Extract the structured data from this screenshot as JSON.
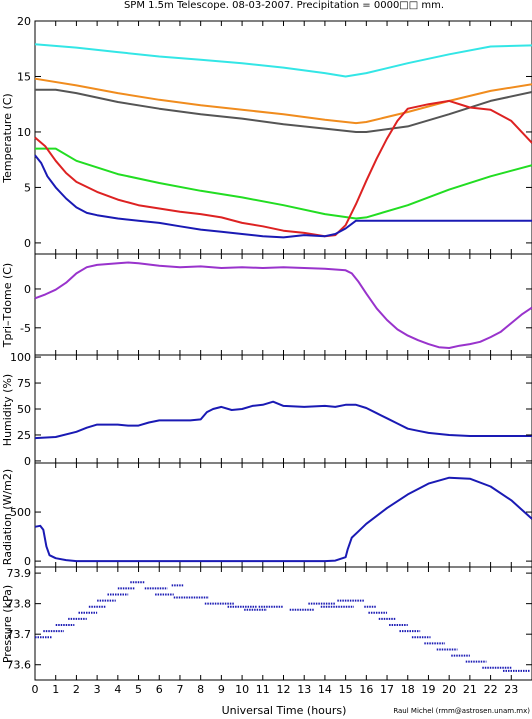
{
  "figure": {
    "title": "SPM 1.5m Telescope. 08-03-2007. Precipitation = 0000□□ mm.",
    "xlabel": "Universal Time (hours)",
    "credit": "Raul Michel (rmm@astrosen.unam.mx)",
    "xticks": [
      "0",
      "1",
      "2",
      "3",
      "4",
      "5",
      "6",
      "7",
      "8",
      "9",
      "10",
      "11",
      "12",
      "13",
      "14",
      "15",
      "16",
      "17",
      "18",
      "19",
      "20",
      "21",
      "22",
      "23"
    ],
    "xlim": [
      0,
      24
    ]
  },
  "chart_data": [
    {
      "type": "line",
      "ylabel": "Temperature (C)",
      "ylim": [
        -1,
        20
      ],
      "yticks": [
        0,
        5,
        10,
        15,
        20
      ],
      "series": [
        {
          "color": "#33e6e6",
          "x": [
            0,
            2,
            4,
            6,
            8,
            10,
            12,
            14,
            15,
            16,
            18,
            20,
            22,
            24
          ],
          "values": [
            17.9,
            17.6,
            17.2,
            16.8,
            16.5,
            16.2,
            15.8,
            15.3,
            15.0,
            15.3,
            16.2,
            17.0,
            17.7,
            17.8
          ]
        },
        {
          "color": "#f08c1e",
          "x": [
            0,
            2,
            4,
            6,
            8,
            10,
            12,
            14,
            15.5,
            16,
            18,
            20,
            22,
            24
          ],
          "values": [
            14.8,
            14.2,
            13.5,
            12.9,
            12.4,
            12.0,
            11.6,
            11.1,
            10.8,
            10.9,
            11.8,
            12.8,
            13.7,
            14.3
          ]
        },
        {
          "color": "#555555",
          "x": [
            0,
            1,
            2,
            4,
            6,
            8,
            10,
            12,
            14,
            15.5,
            16,
            18,
            20,
            22,
            24
          ],
          "values": [
            13.8,
            13.8,
            13.5,
            12.7,
            12.1,
            11.6,
            11.2,
            10.7,
            10.3,
            10.0,
            10.0,
            10.5,
            11.6,
            12.8,
            13.6
          ]
        },
        {
          "color": "#22dd22",
          "x": [
            0,
            1,
            2,
            4,
            6,
            8,
            10,
            12,
            14,
            15.5,
            16,
            18,
            20,
            22,
            24
          ],
          "values": [
            8.5,
            8.5,
            7.4,
            6.2,
            5.4,
            4.7,
            4.1,
            3.4,
            2.6,
            2.2,
            2.3,
            3.4,
            4.8,
            6.0,
            7.0
          ]
        },
        {
          "color": "#dd2222",
          "x": [
            0,
            0.5,
            1,
            1.5,
            2,
            3,
            4,
            5,
            6,
            7,
            8,
            9,
            10,
            11,
            12,
            13,
            14,
            14.5,
            15,
            15.5,
            16,
            16.5,
            17,
            17.5,
            18,
            19,
            20,
            21,
            22,
            23,
            24
          ],
          "values": [
            9.5,
            8.7,
            7.4,
            6.3,
            5.5,
            4.6,
            3.9,
            3.4,
            3.1,
            2.8,
            2.6,
            2.3,
            1.8,
            1.5,
            1.1,
            0.9,
            0.6,
            0.7,
            1.6,
            3.5,
            5.6,
            7.6,
            9.4,
            11.0,
            12.1,
            12.5,
            12.8,
            12.2,
            12.0,
            11.0,
            9.0
          ]
        },
        {
          "color": "#1a1ab4",
          "x": [
            0,
            0.3,
            0.6,
            1,
            1.5,
            2,
            2.5,
            3,
            4,
            5,
            6,
            7,
            8,
            9,
            10,
            11,
            12,
            13,
            14,
            14.5,
            15,
            15.5,
            24
          ],
          "values": [
            7.9,
            7.2,
            6.0,
            5.0,
            4.0,
            3.2,
            2.7,
            2.5,
            2.2,
            2.0,
            1.8,
            1.5,
            1.2,
            1.0,
            0.8,
            0.6,
            0.5,
            0.7,
            0.6,
            0.8,
            1.3,
            2.0,
            2.0
          ]
        }
      ]
    },
    {
      "type": "line",
      "ylabel": "Tpri–Tdome (C)",
      "ylim": [
        -8.5,
        4.5
      ],
      "yticks": [
        -5,
        0
      ],
      "series": [
        {
          "color": "#9933cc",
          "x": [
            0,
            0.5,
            1,
            1.5,
            2,
            2.5,
            3,
            4,
            4.5,
            5,
            6,
            7,
            8,
            9,
            10,
            11,
            12,
            13,
            14,
            14.5,
            15,
            15.3,
            15.6,
            16,
            16.5,
            17,
            17.5,
            18,
            18.5,
            19,
            19.5,
            20,
            20.5,
            21,
            21.5,
            22,
            22.5,
            23,
            23.5,
            24
          ],
          "values": [
            -1.2,
            -0.7,
            -0.1,
            0.8,
            2.0,
            2.8,
            3.1,
            3.3,
            3.4,
            3.3,
            3.0,
            2.8,
            2.9,
            2.7,
            2.8,
            2.7,
            2.8,
            2.7,
            2.6,
            2.5,
            2.4,
            2.0,
            1.0,
            -0.6,
            -2.5,
            -4.0,
            -5.2,
            -6.0,
            -6.6,
            -7.1,
            -7.5,
            -7.6,
            -7.3,
            -7.1,
            -6.8,
            -6.2,
            -5.5,
            -4.4,
            -3.3,
            -2.4
          ]
        }
      ]
    },
    {
      "type": "line",
      "ylabel": "Humidity (%)",
      "ylim": [
        -2,
        102
      ],
      "yticks": [
        0,
        25,
        50,
        75,
        100
      ],
      "series": [
        {
          "color": "#1a1ab4",
          "x": [
            0,
            1,
            2,
            2.5,
            3,
            4,
            4.5,
            5,
            5.5,
            6,
            7,
            7.5,
            8,
            8.3,
            8.6,
            9,
            9.5,
            10,
            10.5,
            11,
            11.5,
            12,
            13,
            14,
            14.5,
            15,
            15.5,
            16,
            16.5,
            17,
            17.5,
            18,
            18.5,
            19,
            20,
            21,
            22,
            23,
            24
          ],
          "values": [
            22,
            23,
            28,
            32,
            35,
            35,
            34,
            34,
            37,
            39,
            39,
            39,
            40,
            47,
            50,
            52,
            49,
            50,
            53,
            54,
            57,
            53,
            52,
            53,
            52,
            54,
            54,
            51,
            46,
            41,
            36,
            31,
            29,
            27,
            25,
            24,
            24,
            24,
            24
          ]
        }
      ]
    },
    {
      "type": "line",
      "ylabel": "Radiation (W/m2)",
      "ylim": [
        -60,
        1000
      ],
      "yticks": [
        0,
        500
      ],
      "series": [
        {
          "color": "#1a1ab4",
          "x": [
            0,
            0.25,
            0.4,
            0.55,
            0.7,
            1,
            1.5,
            2,
            3,
            5,
            8,
            10,
            12,
            14,
            14.5,
            15,
            15.1,
            15.3,
            15.6,
            16,
            17,
            18,
            19,
            20,
            21,
            22,
            23,
            24
          ],
          "values": [
            350,
            360,
            320,
            150,
            60,
            30,
            10,
            0,
            0,
            0,
            0,
            0,
            0,
            0,
            5,
            40,
            120,
            240,
            300,
            380,
            540,
            680,
            790,
            850,
            840,
            760,
            620,
            430
          ]
        }
      ]
    },
    {
      "type": "scatter",
      "ylabel": "Pressure (kPa)",
      "ylim": [
        73.55,
        73.92
      ],
      "yticks": [
        73.6,
        73.7,
        73.8,
        73.9
      ],
      "series": [
        {
          "color": "#1a1ab4",
          "segments": [
            [
              0,
              0.8,
              73.69
            ],
            [
              0.4,
              1.4,
              73.71
            ],
            [
              1.0,
              1.9,
              73.73
            ],
            [
              1.6,
              2.5,
              73.75
            ],
            [
              2.1,
              3.0,
              73.77
            ],
            [
              2.6,
              3.4,
              73.79
            ],
            [
              3.0,
              3.9,
              73.81
            ],
            [
              3.5,
              4.5,
              73.83
            ],
            [
              4.0,
              4.8,
              73.85
            ],
            [
              4.6,
              5.3,
              73.87
            ],
            [
              6.6,
              7.2,
              73.86
            ],
            [
              5.3,
              6.4,
              73.85
            ],
            [
              5.8,
              6.7,
              73.83
            ],
            [
              6.7,
              8.4,
              73.82
            ],
            [
              8.2,
              9.6,
              73.8
            ],
            [
              9.3,
              10.7,
              73.79
            ],
            [
              10.1,
              11.2,
              73.78
            ],
            [
              10.8,
              12.0,
              73.79
            ],
            [
              12.3,
              13.5,
              73.78
            ],
            [
              13.2,
              14.5,
              73.8
            ],
            [
              13.8,
              15.4,
              73.79
            ],
            [
              14.6,
              15.9,
              73.81
            ],
            [
              15.9,
              16.5,
              73.79
            ],
            [
              16.1,
              17.0,
              73.77
            ],
            [
              16.6,
              17.4,
              73.75
            ],
            [
              17.1,
              18.0,
              73.73
            ],
            [
              17.6,
              18.6,
              73.71
            ],
            [
              18.2,
              19.1,
              73.69
            ],
            [
              18.8,
              19.8,
              73.67
            ],
            [
              19.4,
              20.4,
              73.65
            ],
            [
              20.1,
              21.0,
              73.63
            ],
            [
              20.8,
              21.8,
              73.61
            ],
            [
              21.6,
              23.0,
              73.59
            ],
            [
              22.6,
              23.9,
              73.58
            ]
          ]
        }
      ]
    }
  ]
}
